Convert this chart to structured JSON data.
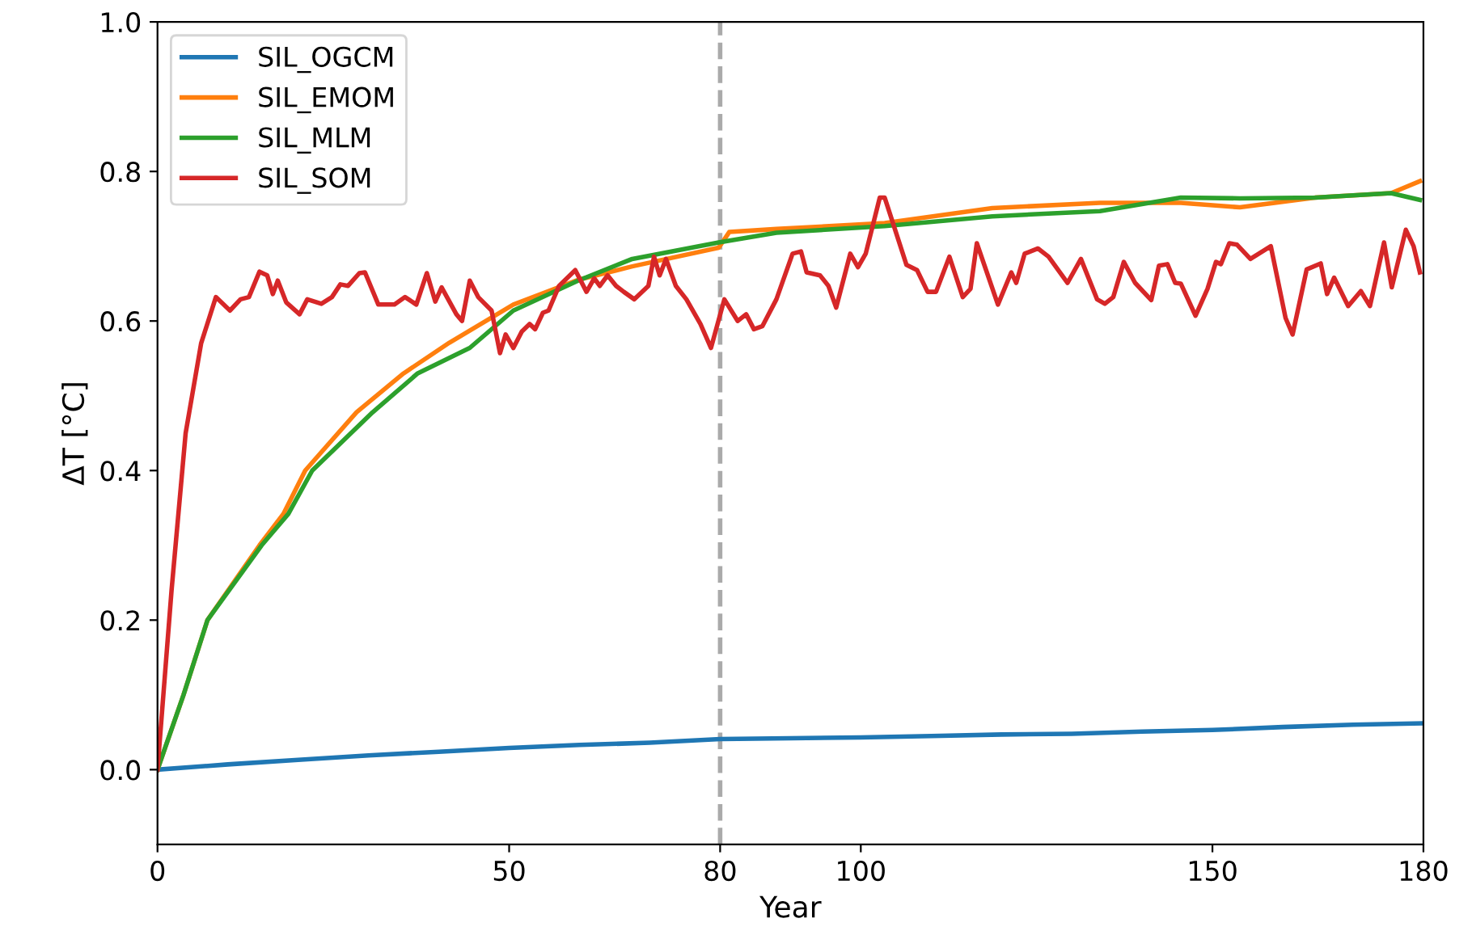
{
  "chart_data": {
    "type": "line",
    "xlabel": "Year",
    "ylabel": "ΔT [°C]",
    "xlim": [
      0,
      180
    ],
    "ylim": [
      -0.1,
      1.0
    ],
    "xticks": [
      0,
      50,
      80,
      100,
      150,
      180
    ],
    "yticks": [
      {
        "value": 0,
        "label": "0.0"
      },
      {
        "value": 0.2,
        "label": "0.2"
      },
      {
        "value": 0.4,
        "label": "0.4"
      },
      {
        "value": 0.6,
        "label": "0.6"
      },
      {
        "value": 0.8,
        "label": "0.8"
      },
      {
        "value": 1,
        "label": "1.0"
      }
    ],
    "legend": "top left",
    "grid": false,
    "ref_lines": [
      {
        "axis": "x",
        "value": 80,
        "color": "#aaaaaa",
        "line_style": "dashed"
      }
    ],
    "series": [
      {
        "name": "SIL_OGCM",
        "color": "#1f77b4",
        "x": [
          0,
          10,
          20,
          30,
          40,
          50,
          60,
          70,
          80,
          90,
          100,
          110,
          120,
          130,
          140,
          150,
          160,
          170,
          180
        ],
        "values": [
          0,
          0.007,
          0.013,
          0.019,
          0.024,
          0.029,
          0.033,
          0.036,
          0.041,
          0.042,
          0.043,
          0.045,
          0.047,
          0.048,
          0.051,
          0.053,
          0.057,
          0.06,
          0.062
        ]
      },
      {
        "name": "SIL_EMOM",
        "color": "#ff7f0e",
        "x": [
          0,
          3.7,
          7.1,
          14.5,
          17.9,
          21,
          28.3,
          35,
          41.5,
          50.6,
          59.8,
          67.5,
          79.8,
          81.3,
          88,
          103.4,
          118.7,
          134,
          145.5,
          153.9,
          164.6,
          175.4,
          179.5
        ],
        "values": [
          0,
          0.1,
          0.2,
          0.3,
          0.342,
          0.4,
          0.478,
          0.53,
          0.571,
          0.622,
          0.655,
          0.673,
          0.698,
          0.719,
          0.723,
          0.731,
          0.751,
          0.758,
          0.758,
          0.752,
          0.765,
          0.771,
          0.787
        ]
      },
      {
        "name": "SIL_MLM",
        "color": "#2ca02c",
        "x": [
          0,
          3.7,
          7.1,
          14.8,
          18.6,
          22,
          30.6,
          37,
          44.4,
          50.6,
          59.8,
          67.5,
          79.8,
          88,
          103.4,
          118.7,
          134,
          145.5,
          153.9,
          164.6,
          175.4,
          179.5
        ],
        "values": [
          0,
          0.1,
          0.2,
          0.3,
          0.342,
          0.4,
          0.478,
          0.53,
          0.564,
          0.614,
          0.654,
          0.683,
          0.705,
          0.718,
          0.727,
          0.74,
          0.747,
          0.765,
          0.764,
          0.765,
          0.771,
          0.762
        ]
      },
      {
        "name": "SIL_SOM",
        "color": "#d62728",
        "x": [
          0,
          2,
          4,
          6.2,
          8.3,
          10.3,
          11.8,
          13,
          14.5,
          15.6,
          16.4,
          17.1,
          18.3,
          20.2,
          21.3,
          23.3,
          24.8,
          26,
          27.1,
          28.7,
          29.5,
          31.4,
          33.7,
          35.2,
          36.8,
          38.3,
          39.5,
          40.4,
          42.5,
          43.3,
          44.4,
          45.6,
          47.5,
          48.7,
          49.5,
          50.6,
          51.8,
          52.9,
          53.7,
          54.8,
          55.6,
          57.1,
          59.4,
          61,
          62.1,
          62.9,
          64,
          65.2,
          66.3,
          67.8,
          69.8,
          70.6,
          71.4,
          72.3,
          73.7,
          75.2,
          77.2,
          78.7,
          80.6,
          82.5,
          83.7,
          84.8,
          86,
          88,
          90.3,
          91.5,
          92.3,
          94.2,
          95.4,
          96.5,
          98.5,
          99.6,
          100.7,
          102.7,
          103.4,
          106.5,
          108,
          109.5,
          110.7,
          112.6,
          114.5,
          115.6,
          116.5,
          119.5,
          121.4,
          122.1,
          123.3,
          125.2,
          126.7,
          129.4,
          131.3,
          133.6,
          134.7,
          135.9,
          137.4,
          139,
          141.3,
          142.4,
          143.6,
          144.7,
          145.5,
          147.6,
          149.3,
          150.5,
          151.2,
          152.4,
          153.5,
          155.4,
          158.3,
          160.4,
          161.4,
          163.4,
          165.4,
          166.3,
          167.3,
          169.3,
          171.1,
          172.4,
          174.4,
          175.5,
          177.5,
          178.6,
          179.5
        ],
        "values": [
          0,
          0.24,
          0.45,
          0.57,
          0.632,
          0.614,
          0.629,
          0.632,
          0.666,
          0.661,
          0.636,
          0.654,
          0.625,
          0.609,
          0.629,
          0.623,
          0.632,
          0.649,
          0.647,
          0.664,
          0.665,
          0.622,
          0.622,
          0.632,
          0.622,
          0.664,
          0.626,
          0.645,
          0.609,
          0.6,
          0.654,
          0.632,
          0.614,
          0.557,
          0.582,
          0.564,
          0.586,
          0.596,
          0.589,
          0.611,
          0.614,
          0.647,
          0.668,
          0.639,
          0.657,
          0.647,
          0.661,
          0.647,
          0.639,
          0.629,
          0.647,
          0.686,
          0.661,
          0.683,
          0.647,
          0.629,
          0.596,
          0.564,
          0.629,
          0.6,
          0.609,
          0.589,
          0.593,
          0.629,
          0.69,
          0.693,
          0.665,
          0.661,
          0.647,
          0.618,
          0.69,
          0.672,
          0.69,
          0.765,
          0.765,
          0.675,
          0.668,
          0.639,
          0.639,
          0.686,
          0.632,
          0.643,
          0.704,
          0.622,
          0.665,
          0.651,
          0.69,
          0.697,
          0.686,
          0.651,
          0.683,
          0.629,
          0.623,
          0.632,
          0.679,
          0.651,
          0.628,
          0.674,
          0.676,
          0.651,
          0.65,
          0.607,
          0.643,
          0.679,
          0.676,
          0.704,
          0.702,
          0.683,
          0.7,
          0.604,
          0.582,
          0.669,
          0.677,
          0.636,
          0.658,
          0.62,
          0.64,
          0.62,
          0.705,
          0.645,
          0.722,
          0.7,
          0.665
        ]
      }
    ]
  }
}
